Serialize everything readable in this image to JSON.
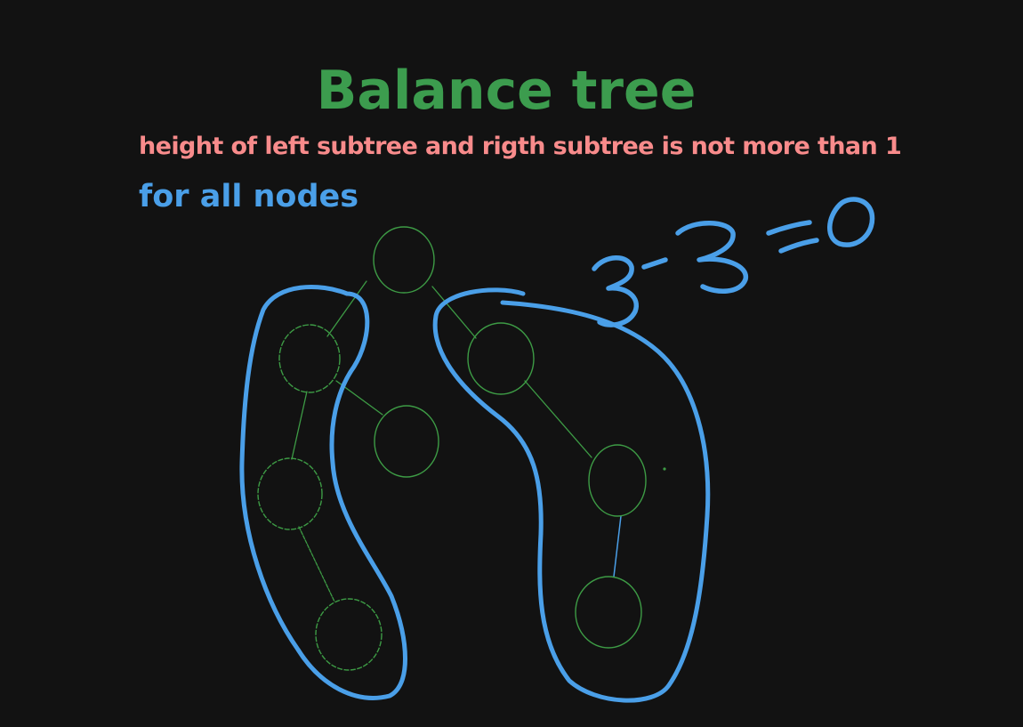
{
  "title": "Balance tree",
  "subtitle": "height of left subtree and rigth subtree is not more than 1",
  "note": "for all nodes",
  "equation": "3-3=0",
  "colors": {
    "background": "#121212",
    "title": "#3c9c4e",
    "subtitle": "#f88b8b",
    "note": "#4a9fe8",
    "node": "#3d9b45",
    "outline": "#4a9fe8"
  }
}
